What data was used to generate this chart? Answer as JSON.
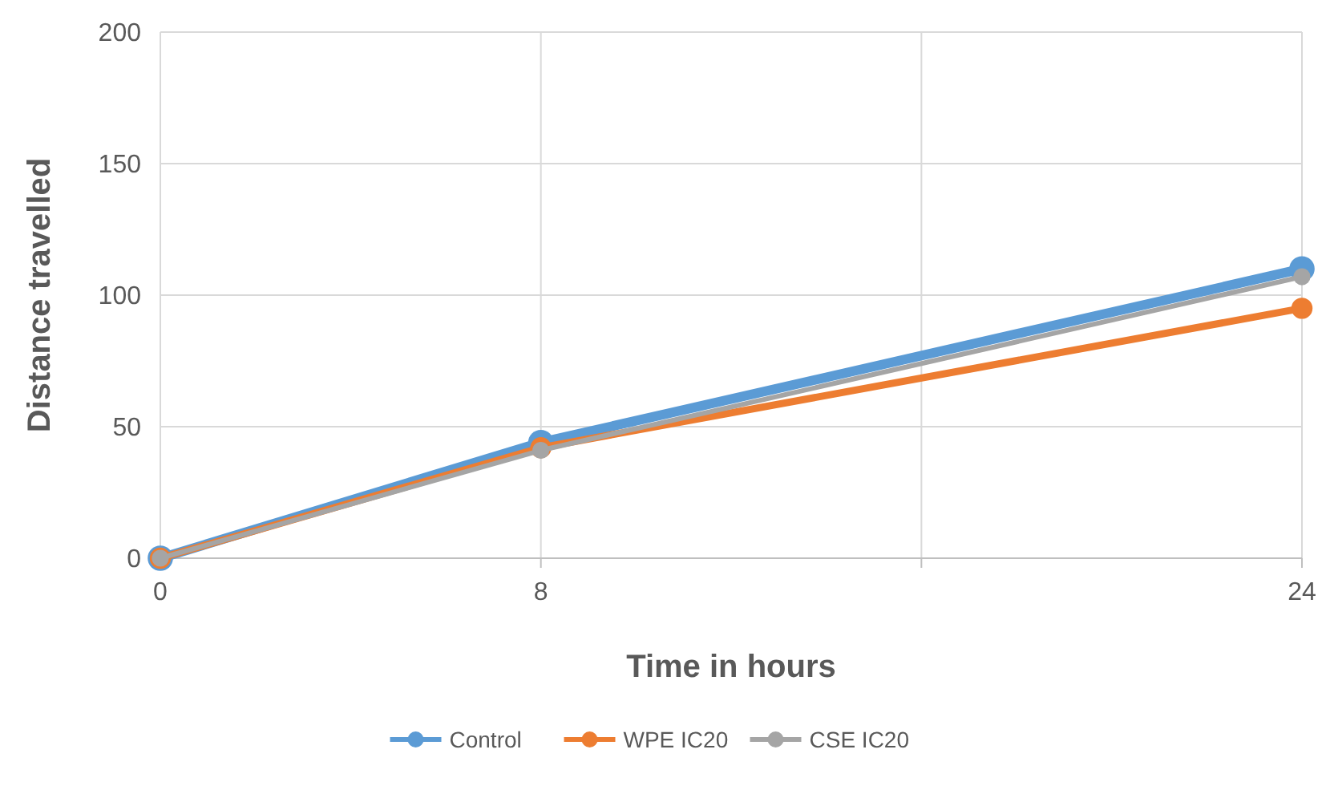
{
  "chart_data": {
    "type": "line",
    "xlabel": "Time in hours",
    "ylabel": "Distance travelled",
    "x": [
      0,
      8,
      24
    ],
    "xlim": [
      0,
      24
    ],
    "xticks": [
      0,
      8,
      {
        "value": 16,
        "label": null
      },
      24
    ],
    "ylim": [
      0,
      200
    ],
    "yticks": [
      0,
      50,
      100,
      150,
      200
    ],
    "grid": true,
    "legend": "bottom",
    "marker": "circle",
    "line_style": "solid",
    "series": [
      {
        "name": "Control",
        "color": "#5b9bd5",
        "values": [
          0,
          44,
          110
        ]
      },
      {
        "name": "WPE IC20",
        "color": "#ed7d31",
        "values": [
          0,
          42,
          95
        ]
      },
      {
        "name": "CSE IC20",
        "color": "#a5a5a5",
        "values": [
          0,
          41,
          107
        ]
      }
    ]
  }
}
